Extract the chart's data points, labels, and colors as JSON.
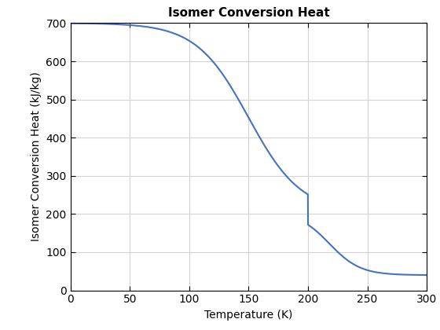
{
  "title": "Isomer Conversion Heat",
  "xlabel": "Temperature (K)",
  "ylabel": "Isomer Conversion Heat (kJ/kg)",
  "line_color": "#4472C4",
  "line_width": 1.5,
  "xlim": [
    0,
    300
  ],
  "ylim": [
    0,
    700
  ],
  "xticks": [
    0,
    50,
    100,
    150,
    200,
    250,
    300
  ],
  "yticks": [
    0,
    100,
    200,
    300,
    400,
    500,
    600,
    700
  ],
  "grid": true,
  "background_color": "#ffffff",
  "title_fontsize": 11,
  "label_fontsize": 10,
  "tick_fontsize": 10,
  "figsize": [
    5.6,
    4.2
  ],
  "dpi": 100
}
